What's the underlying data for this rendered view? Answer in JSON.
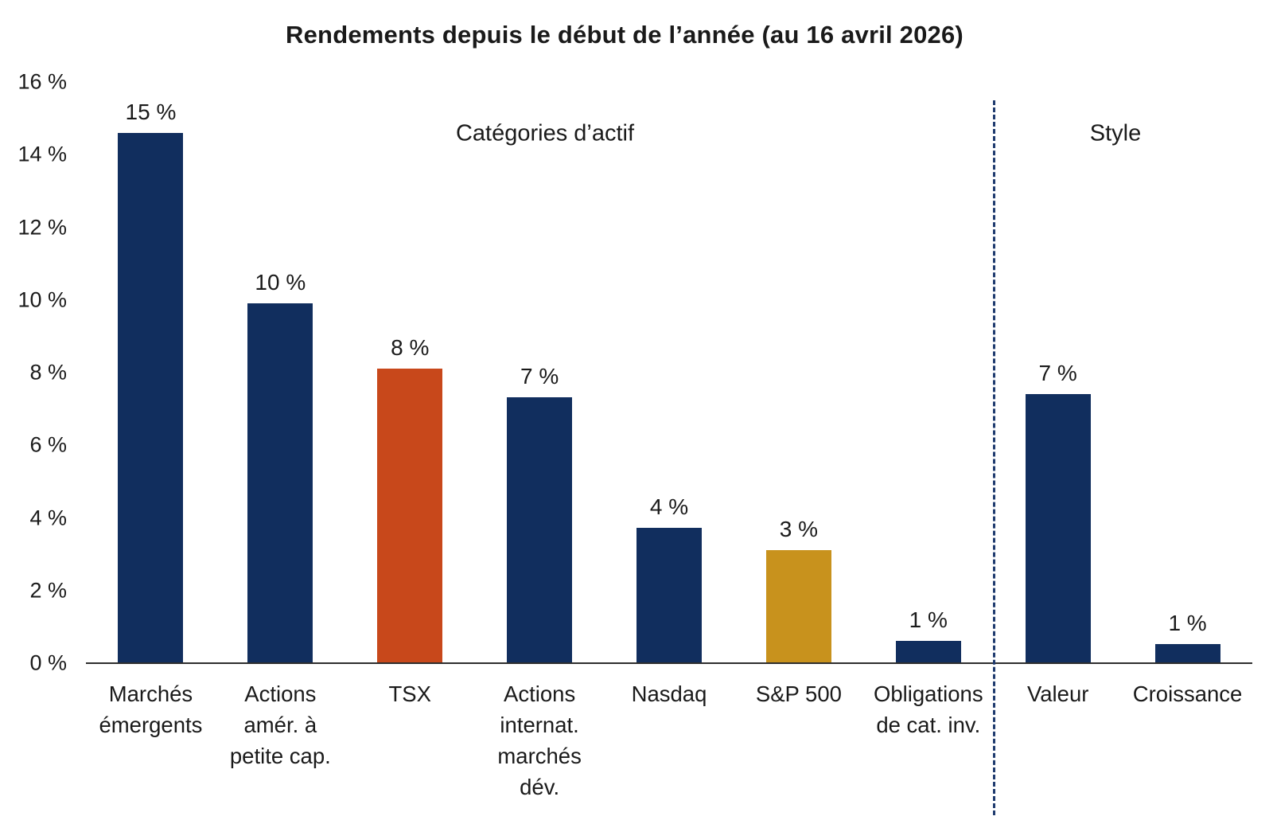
{
  "title": "Rendements depuis le début de l’année (au 16 avril 2026)",
  "sections": {
    "left": "Catégories d’actif",
    "right": "Style"
  },
  "colors": {
    "navy": "#112e5e",
    "orange": "#c8481b",
    "gold": "#c8921d",
    "separator": "#1e3a6e",
    "axis": "#2e2e2e"
  },
  "chart_data": {
    "type": "bar",
    "title": "Rendements depuis le début de l’année (au 16 avril 2026)",
    "categories": [
      "Marchés\némergents",
      "Actions\namér. à\npetite cap.",
      "TSX",
      "Actions\ninternat.\nmarchés\ndév.",
      "Nasdaq",
      "S&P 500",
      "Obligations\nde cat. inv.",
      "Valeur",
      "Croissance"
    ],
    "values": [
      14.6,
      9.9,
      8.1,
      7.3,
      3.7,
      3.1,
      0.6,
      7.4,
      0.5
    ],
    "value_labels": [
      "15 %",
      "10 %",
      "8 %",
      "7 %",
      "4 %",
      "3 %",
      "1 %",
      "7 %",
      "1 %"
    ],
    "bar_colors": [
      "navy",
      "navy",
      "orange",
      "navy",
      "navy",
      "gold",
      "navy",
      "navy",
      "navy"
    ],
    "group_labels": [
      "Catégories d’actif",
      "Style"
    ],
    "separator_after_index": 6,
    "xlabel": "",
    "ylabel": "",
    "ylim": [
      0,
      16
    ],
    "yticks": [
      {
        "value": 16,
        "label": "16 %"
      },
      {
        "value": 14,
        "label": "14 %"
      },
      {
        "value": 12,
        "label": "12 %"
      },
      {
        "value": 10,
        "label": "10 %"
      },
      {
        "value": 8,
        "label": "8 %"
      },
      {
        "value": 6,
        "label": "6 %"
      },
      {
        "value": 4,
        "label": "4 %"
      },
      {
        "value": 2,
        "label": "2 %"
      },
      {
        "value": 0,
        "label": "0 %"
      }
    ],
    "grid": false,
    "legend": null
  }
}
